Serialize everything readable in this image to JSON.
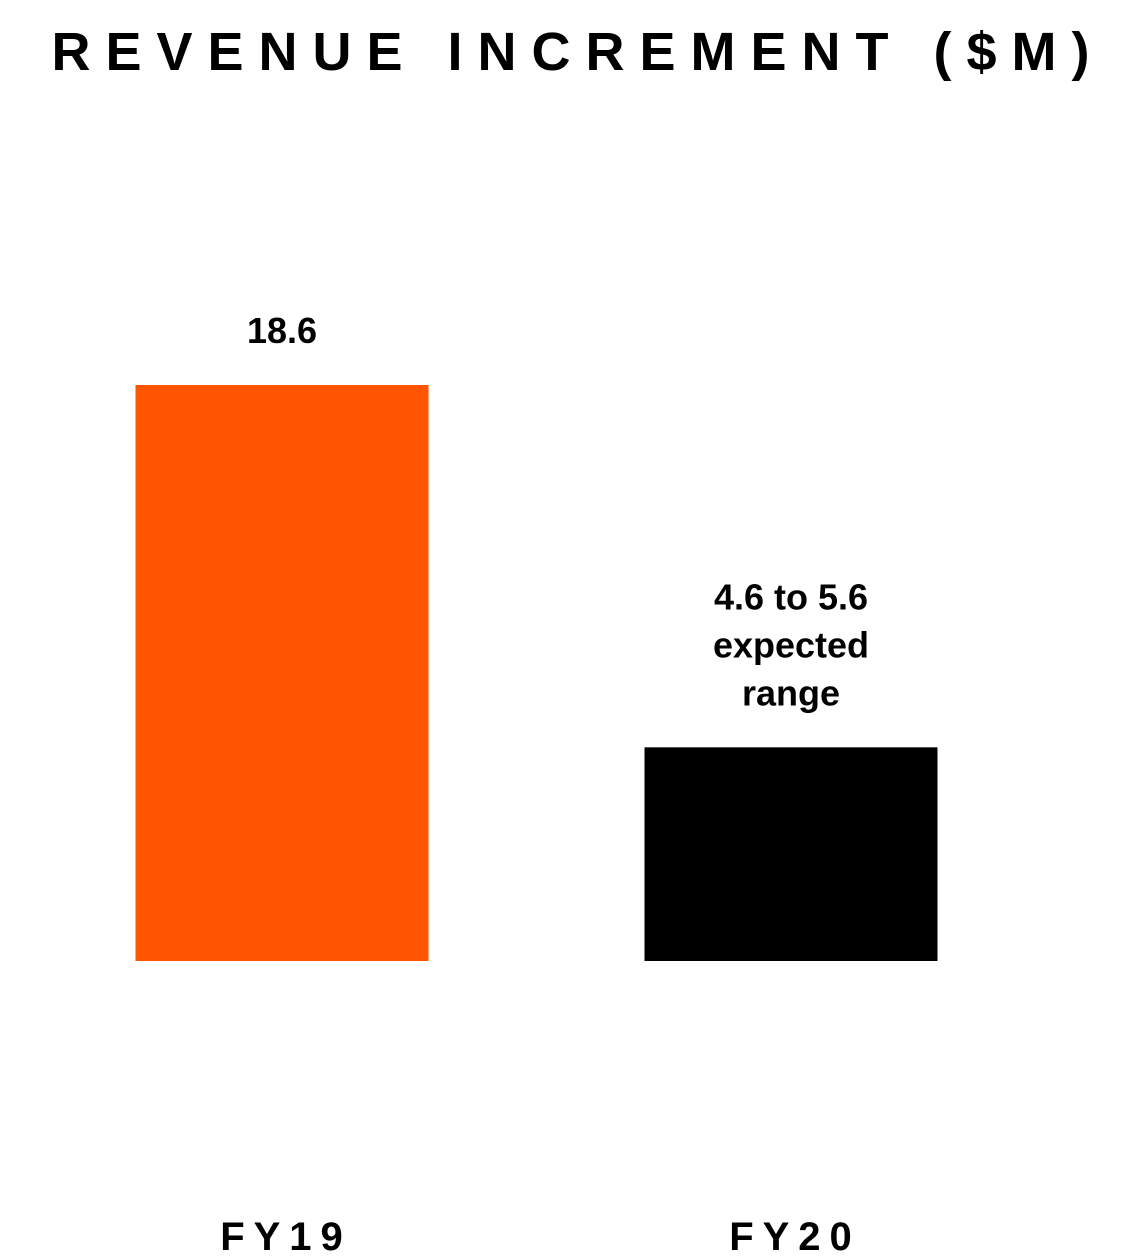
{
  "chart_data": {
    "type": "bar",
    "title": "REVENUE INCREMENT ($M)",
    "xlabel": "",
    "ylabel": "",
    "categories": [
      "FY19",
      "FY20"
    ],
    "values": [
      18.6,
      6.9
    ],
    "data_labels": [
      [
        "18.6"
      ],
      [
        "4.6 to 5.6",
        "expected",
        "range"
      ]
    ],
    "colors": [
      "#ff5500",
      "#000000"
    ],
    "ylim": [
      0,
      18.6
    ],
    "grid": false,
    "legend": "none"
  }
}
